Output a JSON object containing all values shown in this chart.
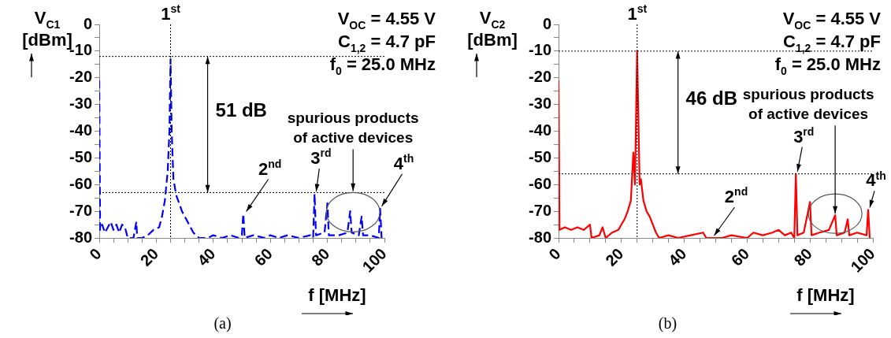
{
  "chart_data": [
    {
      "type": "line",
      "ylabel": "V$_{C1}$\n[dBm]",
      "xlabel": "f [MHz]",
      "xlim": [
        0,
        100
      ],
      "ylim": [
        -80,
        0
      ],
      "xticks": [
        0,
        {
          "value": 5,
          "label": null
        },
        {
          "value": 10,
          "label": null
        },
        {
          "value": 15,
          "label": null
        },
        20,
        {
          "value": 25,
          "label": null
        },
        {
          "value": 30,
          "label": null
        },
        {
          "value": 35,
          "label": null
        },
        40,
        {
          "value": 45,
          "label": null
        },
        {
          "value": 50,
          "label": null
        },
        {
          "value": 55,
          "label": null
        },
        60,
        {
          "value": 65,
          "label": null
        },
        {
          "value": 70,
          "label": null
        },
        {
          "value": 75,
          "label": null
        },
        80,
        {
          "value": 85,
          "label": null
        },
        {
          "value": 90,
          "label": null
        },
        {
          "value": 95,
          "label": null
        },
        100
      ],
      "yticks": [
        -80,
        {
          "value": -75,
          "label": null
        },
        -70,
        {
          "value": -65,
          "label": null
        },
        -60,
        {
          "value": -55,
          "label": null
        },
        -50,
        {
          "value": -45,
          "label": null
        },
        -40,
        {
          "value": -35,
          "label": null
        },
        -30,
        {
          "value": -25,
          "label": null
        },
        -20,
        {
          "value": -15,
          "label": null
        },
        -10,
        {
          "value": -5,
          "label": null
        },
        0
      ],
      "grid": false,
      "legend": false,
      "marker": "none",
      "line_style": "dashed",
      "ref_lines": [
        {
          "axis": "y",
          "value": -12,
          "color": "#000000",
          "line_style": "dotted"
        },
        {
          "axis": "y",
          "value": -63,
          "color": "#000000",
          "line_style": "dotted"
        },
        {
          "axis": "x",
          "value": 25,
          "color": "#000000",
          "line_style": "dotted"
        }
      ],
      "series": [
        {
          "color": "#0000ff",
          "x": [
            0,
            0.3,
            1,
            2,
            3,
            4,
            5,
            6,
            7,
            8,
            9,
            10,
            12,
            13,
            13.3,
            15,
            17,
            19,
            21,
            22,
            23,
            24,
            24.6,
            25,
            25.4,
            26,
            27,
            28,
            29,
            30,
            31,
            32,
            33,
            34,
            35,
            38,
            40,
            43,
            46,
            49,
            50,
            50.5,
            51,
            54,
            58,
            60,
            63,
            66,
            70,
            74,
            75,
            75.5,
            76,
            79,
            80,
            80.5,
            84,
            87,
            88,
            88.5,
            91,
            92,
            92.5,
            95,
            98,
            98.5,
            99
          ],
          "values": [
            -21,
            -77,
            -75,
            -78,
            -76,
            -74,
            -77,
            -75,
            -78,
            -75,
            -76,
            -80,
            -80,
            -74,
            -80,
            -80,
            -79,
            -77,
            -76,
            -72,
            -66,
            -55,
            -40,
            -13,
            -40,
            -58,
            -64,
            -67,
            -70,
            -72,
            -74,
            -76,
            -78,
            -79,
            -80,
            -80,
            -79,
            -80,
            -79,
            -80,
            -79,
            -71,
            -80,
            -79,
            -80,
            -79,
            -80,
            -79,
            -80,
            -79,
            -80,
            -63.5,
            -79,
            -78,
            -67,
            -79,
            -79,
            -78,
            -70,
            -78,
            -79,
            -72,
            -79,
            -79,
            -80,
            -69,
            -80
          ]
        }
      ],
      "annotations": [
        {
          "text": "1$^{st}$",
          "x": 25,
          "y": -13
        },
        "51 dB",
        {
          "text": "2$^{nd}$",
          "x": 51,
          "y": -71
        },
        {
          "text": "3$^{rd}$",
          "x": 75.5,
          "y": -63.5
        },
        {
          "text": "4$^{th}$",
          "x": 98.5,
          "y": -69
        },
        {
          "text": "spurious products\nof active devices",
          "x": 89,
          "y": -63
        },
        "V$_{OC}$ = 4.55 V",
        "C$_{1,2}$ = 4.7 pF",
        "f$_{0}$ = 25.0 MHz",
        "(a)"
      ]
    },
    {
      "type": "line",
      "ylabel": "V$_{C2}$\n[dBm]",
      "xlabel": "f [MHz]",
      "xlim": [
        0,
        100
      ],
      "ylim": [
        -80,
        0
      ],
      "xticks": [
        0,
        {
          "value": 5,
          "label": null
        },
        {
          "value": 10,
          "label": null
        },
        {
          "value": 15,
          "label": null
        },
        20,
        {
          "value": 25,
          "label": null
        },
        {
          "value": 30,
          "label": null
        },
        {
          "value": 35,
          "label": null
        },
        40,
        {
          "value": 45,
          "label": null
        },
        {
          "value": 50,
          "label": null
        },
        {
          "value": 55,
          "label": null
        },
        60,
        {
          "value": 65,
          "label": null
        },
        {
          "value": 70,
          "label": null
        },
        {
          "value": 75,
          "label": null
        },
        80,
        {
          "value": 85,
          "label": null
        },
        {
          "value": 90,
          "label": null
        },
        {
          "value": 95,
          "label": null
        },
        100
      ],
      "yticks": [
        -80,
        {
          "value": -75,
          "label": null
        },
        -70,
        {
          "value": -65,
          "label": null
        },
        -60,
        {
          "value": -55,
          "label": null
        },
        -50,
        {
          "value": -45,
          "label": null
        },
        -40,
        {
          "value": -35,
          "label": null
        },
        -30,
        {
          "value": -25,
          "label": null
        },
        -20,
        {
          "value": -15,
          "label": null
        },
        -10,
        {
          "value": -5,
          "label": null
        },
        0
      ],
      "grid": false,
      "legend": false,
      "marker": "none",
      "line_style": "solid",
      "ref_lines": [
        {
          "axis": "y",
          "value": -10,
          "color": "#000000",
          "line_style": "dotted"
        },
        {
          "axis": "y",
          "value": -56,
          "color": "#000000",
          "line_style": "dotted"
        },
        {
          "axis": "x",
          "value": 25,
          "color": "#000000",
          "line_style": "dotted"
        }
      ],
      "series": [
        {
          "color": "#ff0000",
          "x": [
            0,
            0.3,
            2,
            4,
            6,
            8,
            10,
            10.5,
            13,
            14,
            15,
            17,
            19,
            20,
            21,
            22,
            23,
            23.8,
            24.3,
            25,
            25.8,
            26.2,
            27,
            28,
            29,
            30,
            31,
            32,
            35,
            38,
            42,
            46,
            47,
            52,
            55,
            60,
            62,
            65,
            68,
            70,
            72,
            74,
            75,
            75.5,
            76,
            78,
            80,
            80.5,
            83,
            86,
            88,
            88.5,
            91,
            92,
            92.5,
            95,
            98,
            98.5,
            99
          ],
          "values": [
            -21,
            -77,
            -76,
            -77,
            -76,
            -77,
            -75,
            -80,
            -79,
            -76,
            -80,
            -78,
            -77,
            -75,
            -73,
            -70,
            -66,
            -48,
            -60,
            -10,
            -60,
            -58,
            -66,
            -70,
            -72,
            -75,
            -78,
            -80,
            -79,
            -80,
            -79,
            -78,
            -80,
            -80,
            -79,
            -80,
            -78,
            -79,
            -78,
            -77,
            -79,
            -78,
            -80,
            -56,
            -79,
            -78,
            -66.5,
            -79,
            -78,
            -77,
            -71.5,
            -79,
            -78,
            -73,
            -79,
            -78,
            -79,
            -69.5,
            -80
          ]
        }
      ],
      "annotations": [
        {
          "text": "1$^{st}$",
          "x": 25,
          "y": -10
        },
        "46 dB",
        {
          "text": "2$^{nd}$",
          "x": 49,
          "y": -80
        },
        {
          "text": "3$^{rd}$",
          "x": 75.5,
          "y": -56
        },
        {
          "text": "4$^{th}$",
          "x": 98.5,
          "y": -69.5
        },
        {
          "text": "spurious products\nof active devices",
          "x": 88,
          "y": -71.5
        },
        "V$_{OC}$ = 4.55 V",
        "C$_{1,2}$ = 4.7 pF",
        "f$_{0}$ = 25.0 MHz",
        "(b)"
      ]
    }
  ]
}
